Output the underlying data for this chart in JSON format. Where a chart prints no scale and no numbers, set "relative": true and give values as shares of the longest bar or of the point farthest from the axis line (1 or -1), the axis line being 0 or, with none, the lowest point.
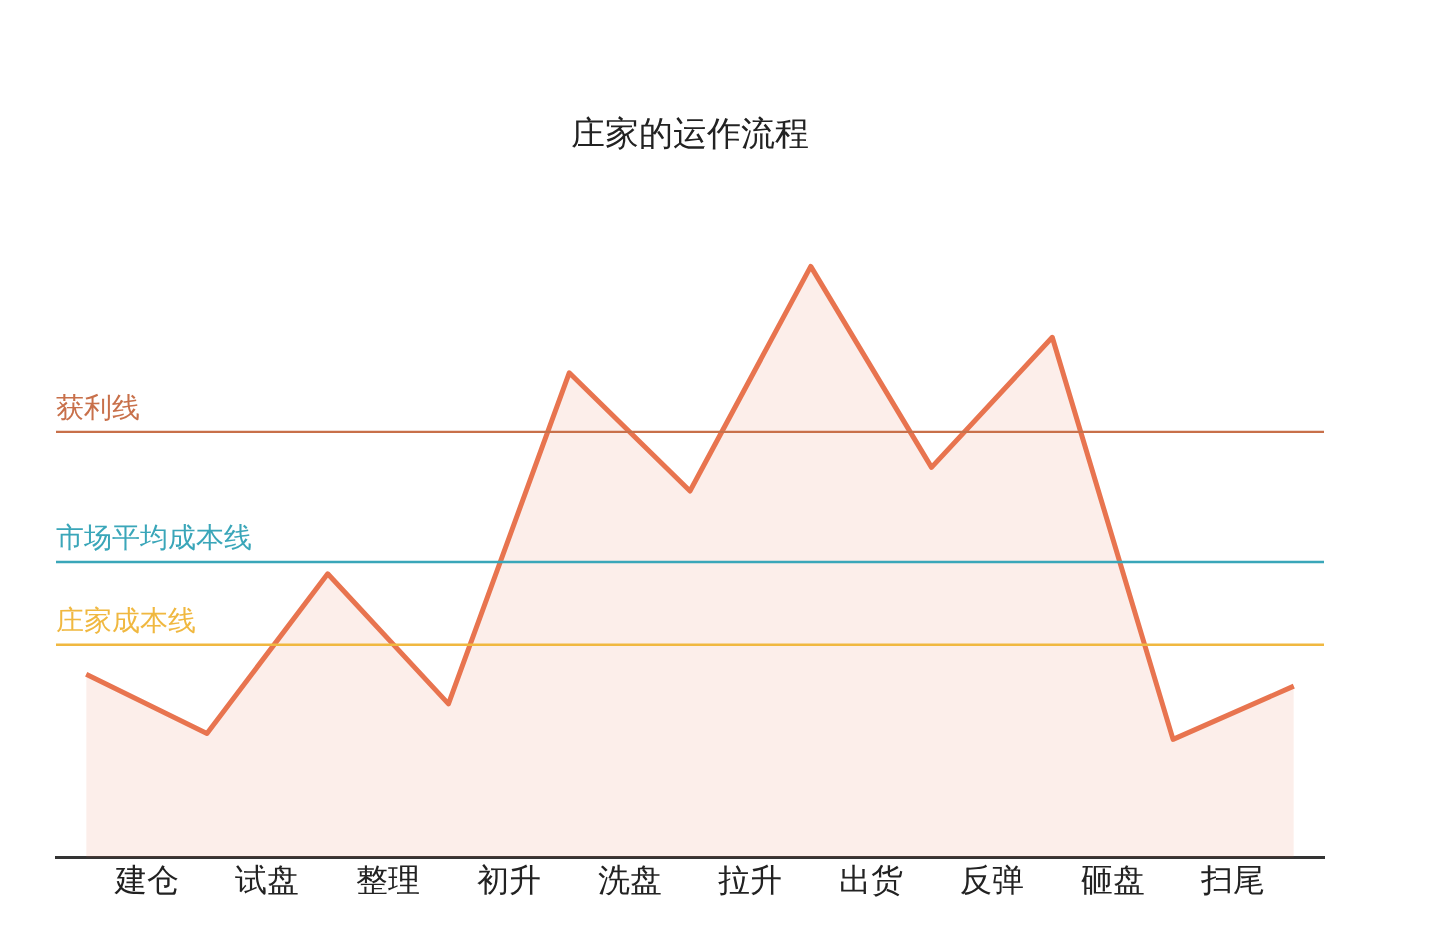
{
  "chart_data": {
    "type": "area",
    "title": "庄家的运作流程",
    "relative": true,
    "categories": [
      null,
      "建仓",
      null,
      "试盘",
      null,
      "整理",
      null,
      "初升",
      null,
      "洗盘",
      null,
      "拉升",
      null,
      "出货",
      null,
      "反弹",
      null,
      "砸盘",
      null,
      "扫尾",
      null
    ],
    "series": [
      {
        "color": "#e8744f",
        "values": [
          0.31,
          null,
          0.21,
          null,
          0.48,
          null,
          0.26,
          null,
          0.82,
          null,
          0.62,
          null,
          1,
          null,
          0.66,
          null,
          0.88,
          null,
          0.2,
          null,
          0.29
        ]
      }
    ],
    "ref_lines": [
      {
        "axis": "y",
        "value": 0.72,
        "label": "获利线",
        "color": "#c8704a"
      },
      {
        "axis": "y",
        "value": 0.5,
        "label": "市场平均成本线",
        "color": "#3aa6b9"
      },
      {
        "axis": "y",
        "value": 0.36,
        "label": "庄家成本线",
        "color": "#f0b840"
      }
    ],
    "grid": false,
    "legend": false,
    "marker": "none",
    "line_style": "solid"
  }
}
